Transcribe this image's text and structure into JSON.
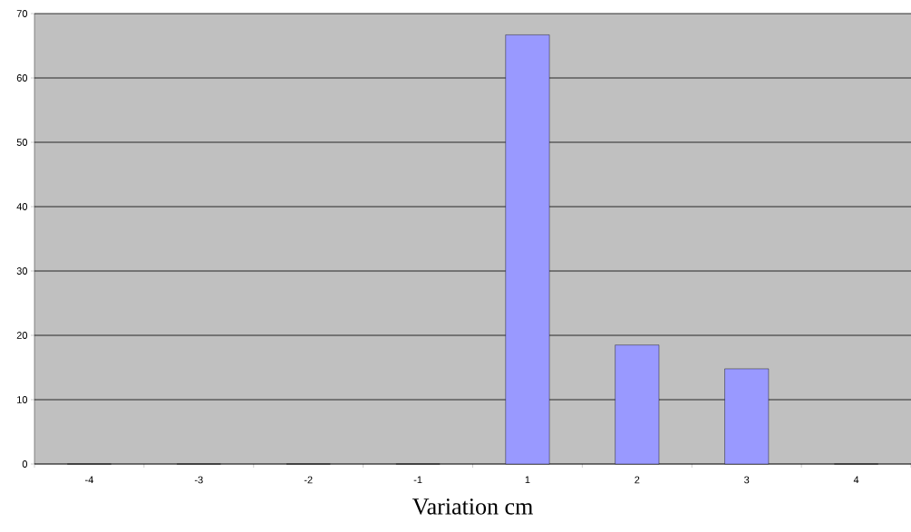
{
  "chart_data": {
    "type": "bar",
    "xlabel": "Variation cm",
    "categories": [
      "-4",
      "-3",
      "-2",
      "-1",
      "1",
      "2",
      "3",
      "4"
    ],
    "values": [
      0,
      0,
      0,
      0,
      66.7,
      18.5,
      14.8,
      0
    ],
    "color": "#9999ff",
    "ylim": [
      0,
      70
    ],
    "yticks": [
      0,
      10,
      20,
      30,
      40,
      50,
      60,
      70
    ],
    "grid": "y"
  }
}
